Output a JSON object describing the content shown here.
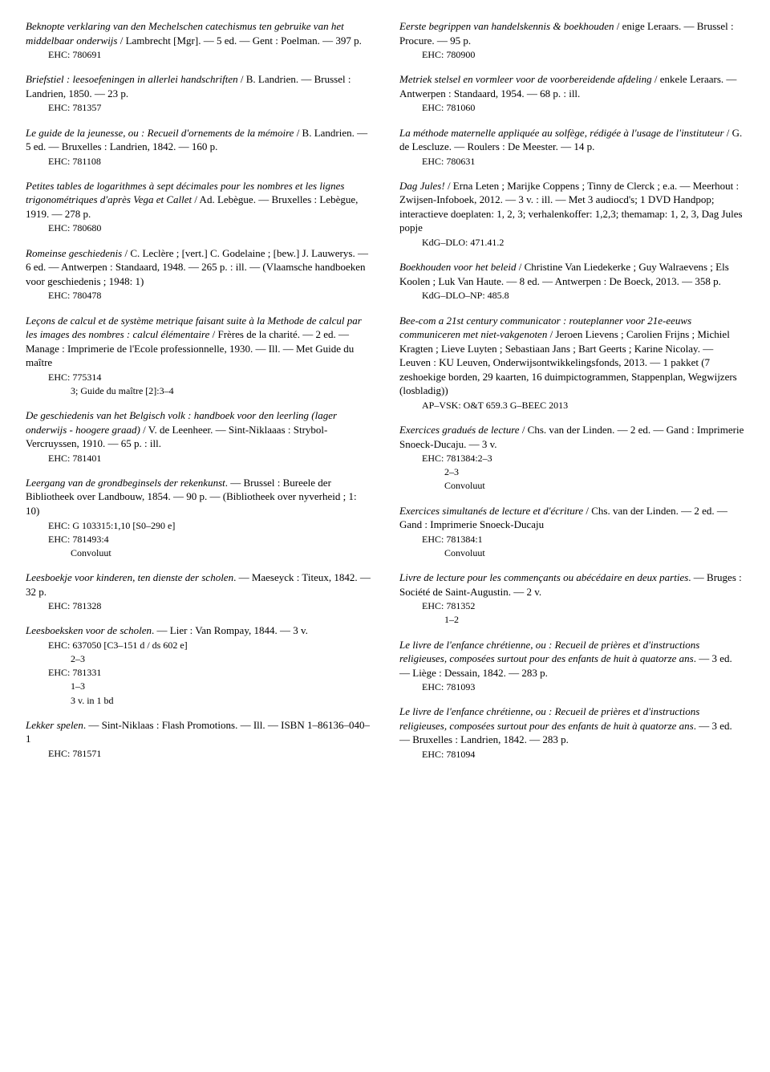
{
  "left": [
    {
      "lines": [
        {
          "text": "Beknopte verklaring van den Mechelschen catechismus ten gebruike van het middelbaar onderwijs",
          "cls": "title",
          "append": " / Lambrecht [Mgr]. — 5 ed. — Gent : Poelman. — 397 p."
        },
        {
          "text": "EHC: 780691",
          "cls": "ref"
        }
      ]
    },
    {
      "lines": [
        {
          "text": "Briefstiel : leesoefeningen in allerlei handschriften",
          "cls": "title",
          "append": " / B. Landrien. — Brussel : Landrien, 1850. — 23 p."
        },
        {
          "text": "EHC: 781357",
          "cls": "ref"
        }
      ]
    },
    {
      "lines": [
        {
          "text": "Le guide de la jeunesse, ou : Recueil d'ornements de la mémoire",
          "cls": "title",
          "append": " / B. Landrien. — 5 ed. — Bruxelles : Landrien, 1842. — 160 p."
        },
        {
          "text": "EHC: 781108",
          "cls": "ref"
        }
      ]
    },
    {
      "lines": [
        {
          "text": "Petites tables de logarithmes à sept décimales pour les nombres et les lignes trigonométriques d'après Vega et Callet",
          "cls": "title",
          "append": " / Ad. Lebègue. — Bruxelles : Lebègue, 1919. — 278 p."
        },
        {
          "text": "EHC: 780680",
          "cls": "ref"
        }
      ]
    },
    {
      "lines": [
        {
          "text": "Romeinse geschiedenis",
          "cls": "title",
          "append": " / C. Leclère ; [vert.] C. Godelaine ; [bew.] J. Lauwerys. — 6 ed. — Antwerpen : Standaard, 1948. — 265 p. : ill. — (Vlaamsche handboeken voor geschiedenis ; 1948: 1)"
        },
        {
          "text": "EHC: 780478",
          "cls": "ref"
        }
      ]
    },
    {
      "lines": [
        {
          "text": "Leçons de calcul et de système metrique faisant suite à la Methode de calcul par les images des nombres : calcul élémentaire",
          "cls": "title",
          "append": " / Frères de la charité. — 2 ed. — Manage : Imprimerie de l'Ecole professionnelle, 1930. — Ill. — Met Guide du maître"
        },
        {
          "text": "EHC: 775314",
          "cls": "ref"
        },
        {
          "text": "3; Guide du maître [2]:3–4",
          "cls": "sub"
        }
      ]
    },
    {
      "lines": [
        {
          "text": "De geschiedenis van het Belgisch volk : handboek voor den leerling (lager onderwijs - hoogere graad)",
          "cls": "title",
          "append": " / V. de Leenheer. — Sint-Niklaaas : Strybol-Vercruyssen, 1910. — 65 p. : ill."
        },
        {
          "text": "EHC: 781401",
          "cls": "ref"
        }
      ]
    },
    {
      "lines": [
        {
          "text": "Leergang van de grondbeginsels der rekenkunst",
          "cls": "title",
          "append": ". — Brussel : Bureele der Bibliotheek over Landbouw, 1854. — 90 p. — (Bibliotheek over nyverheid ; 1: 10)"
        },
        {
          "text": "EHC: G 103315:1,10 [S0–290 e]",
          "cls": "ref"
        },
        {
          "text": "EHC: 781493:4",
          "cls": "ref"
        },
        {
          "text": "Convoluut",
          "cls": "sub"
        }
      ]
    },
    {
      "lines": [
        {
          "text": "Leesboekje voor kinderen, ten dienste der scholen",
          "cls": "title",
          "append": ". — Maeseyck : Titeux, 1842. — 32 p."
        },
        {
          "text": "EHC: 781328",
          "cls": "ref"
        }
      ]
    },
    {
      "lines": [
        {
          "text": "Leesboeksken voor de scholen",
          "cls": "title",
          "append": ". — Lier : Van Rompay, 1844. — 3 v."
        },
        {
          "text": "EHC: 637050 [C3–151 d / ds 602 e]",
          "cls": "ref"
        },
        {
          "text": "2–3",
          "cls": "sub"
        },
        {
          "text": "EHC: 781331",
          "cls": "ref"
        },
        {
          "text": "1–3",
          "cls": "sub"
        },
        {
          "text": "3 v. in 1 bd",
          "cls": "sub"
        }
      ]
    },
    {
      "lines": [
        {
          "text": "Lekker spelen",
          "cls": "title",
          "append": ". — Sint-Niklaas : Flash Promotions. — Ill. — ISBN 1–86136–040–1"
        },
        {
          "text": "EHC: 781571",
          "cls": "ref"
        }
      ]
    }
  ],
  "right": [
    {
      "lines": [
        {
          "text": "Eerste begrippen van handelskennis & boekhouden",
          "cls": "title",
          "append": " / enige Leraars. — Brussel : Procure. — 95 p."
        },
        {
          "text": "EHC: 780900",
          "cls": "ref"
        }
      ]
    },
    {
      "lines": [
        {
          "text": "Metriek stelsel en vormleer voor de voorbereidende afdeling",
          "cls": "title",
          "append": " / enkele Leraars. — Antwerpen : Standaard, 1954. — 68 p. : ill."
        },
        {
          "text": "EHC: 781060",
          "cls": "ref"
        }
      ]
    },
    {
      "lines": [
        {
          "text": "La méthode maternelle appliquée au solfège, rédigée à l'usage de l'instituteur",
          "cls": "title",
          "append": " / G. de Lescluze. — Roulers : De Meester. — 14 p."
        },
        {
          "text": "EHC: 780631",
          "cls": "ref"
        }
      ]
    },
    {
      "lines": [
        {
          "text": "Dag Jules!",
          "cls": "title",
          "append": " / Erna Leten ; Marijke Coppens ; Tinny de Clerck ; e.a. — Meerhout : Zwijsen-Infoboek, 2012. — 3 v. : ill. — Met 3 audiocd's; 1 DVD Handpop; interactieve doeplaten: 1, 2, 3; verhalenkoffer: 1,2,3; themamap: 1, 2, 3, Dag Jules popje"
        },
        {
          "text": "KdG–DLO: 471.41.2",
          "cls": "ref"
        }
      ]
    },
    {
      "lines": [
        {
          "text": "Boekhouden voor het beleid",
          "cls": "title",
          "append": " / Christine Van Liedekerke ; Guy Walraevens ; Els Koolen ; Luk Van Haute. — 8 ed. — Antwerpen : De Boeck, 2013. — 358 p."
        },
        {
          "text": "KdG–DLO–NP: 485.8",
          "cls": "ref"
        }
      ]
    },
    {
      "lines": [
        {
          "text": "Bee-com a 21st century communicator : routeplanner voor 21e-eeuws communiceren met niet-vakgenoten",
          "cls": "title",
          "append": " / Jeroen Lievens ; Carolien Frijns ; Michiel Kragten ; Lieve Luyten ; Sebastiaan Jans ; Bart Geerts ; Karine Nicolay. — Leuven : KU Leuven, Onderwijsontwikkelingsfonds, 2013. — 1 pakket (7 zeshoekige borden, 29 kaarten, 16 duimpictogrammen, Stappenplan, Wegwijzers (losbladig))"
        },
        {
          "text": "AP–VSK: O&T 659.3 G–BEEC 2013",
          "cls": "ref"
        }
      ]
    },
    {
      "lines": [
        {
          "text": "Exercices gradués de lecture",
          "cls": "title",
          "append": " / Chs. van der Linden. — 2 ed. — Gand : Imprimerie Snoeck-Ducaju. — 3 v."
        },
        {
          "text": "EHC: 781384:2–3",
          "cls": "ref"
        },
        {
          "text": "2–3",
          "cls": "sub"
        },
        {
          "text": "Convoluut",
          "cls": "sub"
        }
      ]
    },
    {
      "lines": [
        {
          "text": "Exercices simultanés de lecture et d'écriture",
          "cls": "title",
          "append": " / Chs. van der Linden. — 2 ed. — Gand : Imprimerie Snoeck-Ducaju"
        },
        {
          "text": "EHC: 781384:1",
          "cls": "ref"
        },
        {
          "text": "Convoluut",
          "cls": "sub"
        }
      ]
    },
    {
      "lines": [
        {
          "text": "Livre de lecture pour les commençants ou abécédaire en deux parties",
          "cls": "title",
          "append": ". — Bruges : Société de Saint-Augustin. — 2 v."
        },
        {
          "text": "EHC: 781352",
          "cls": "ref"
        },
        {
          "text": "1–2",
          "cls": "sub"
        }
      ]
    },
    {
      "lines": [
        {
          "text": "Le livre de l'enfance chrétienne, ou : Recueil de prières et d'instructions religieuses, composées surtout pour des enfants de huit à quatorze ans",
          "cls": "title",
          "append": ". — 3 ed. — Liège : Dessain, 1842. — 283 p."
        },
        {
          "text": "EHC: 781093",
          "cls": "ref"
        }
      ]
    },
    {
      "lines": [
        {
          "text": "Le livre de l'enfance chrétienne, ou : Recueil de prières et d'instructions religieuses, composées surtout pour des enfants de huit à quatorze ans",
          "cls": "title",
          "append": ". — 3 ed. — Bruxelles : Landrien, 1842. — 283 p."
        },
        {
          "text": "EHC: 781094",
          "cls": "ref"
        }
      ]
    }
  ]
}
